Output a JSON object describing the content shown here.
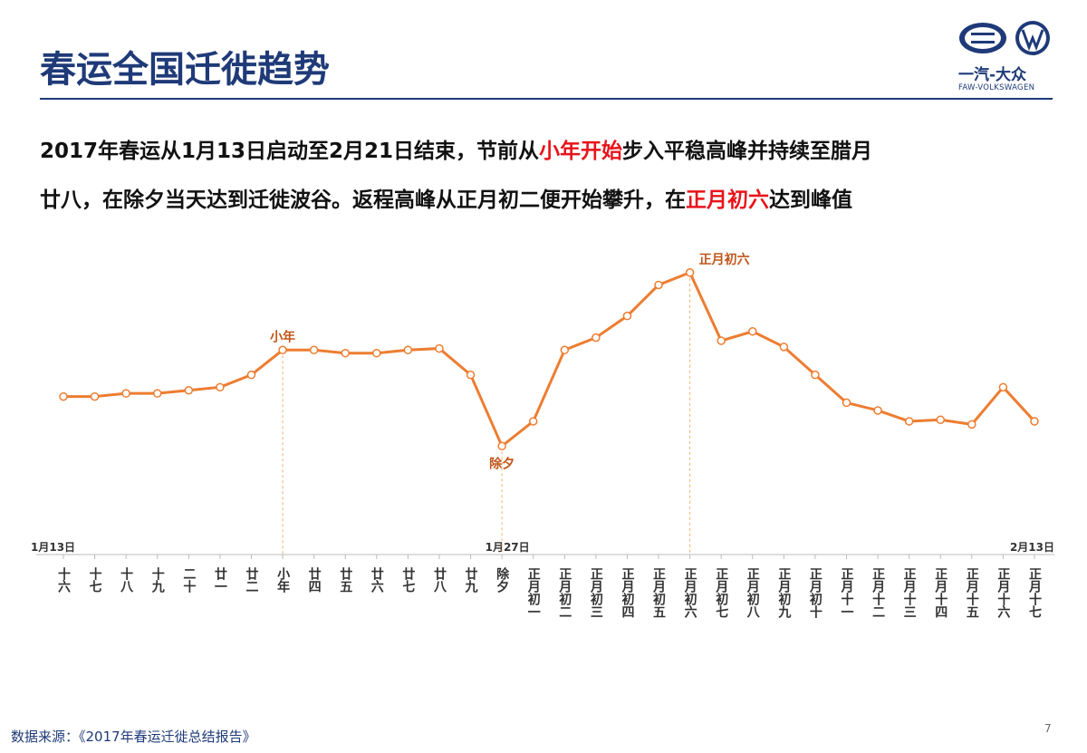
{
  "header": {
    "title": "春运全国迁徙趋势",
    "logo_cn": "一汽-大众",
    "logo_en": "FAW-VOLKSWAGEN"
  },
  "paragraph": [
    [
      {
        "text": "2017年春运从1月13日启动至2月21日结束，节前从",
        "highlight": false
      },
      {
        "text": "小年开始",
        "highlight": true
      },
      {
        "text": "步入平稳高峰并持续至腊月",
        "highlight": false
      }
    ],
    [
      {
        "text": "廿八，在除夕当天达到迁徙波谷。返程高峰从正月初二便开始攀升，在",
        "highlight": false
      },
      {
        "text": "正月初六",
        "highlight": true
      },
      {
        "text": "达到峰值",
        "highlight": false
      }
    ]
  ],
  "chart_data": {
    "type": "line",
    "categories": [
      "十六",
      "十七",
      "十八",
      "十九",
      "二十",
      "廿一",
      "廿二",
      "小年",
      "廿四",
      "廿五",
      "廿六",
      "廿七",
      "廿八",
      "廿九",
      "除夕",
      "正月初一",
      "正月初二",
      "正月初三",
      "正月初四",
      "正月初五",
      "正月初六",
      "正月初七",
      "正月初八",
      "正月初九",
      "正月初十",
      "正月十一",
      "正月十二",
      "正月十三",
      "正月十四",
      "正月十五",
      "正月十六",
      "正月十七"
    ],
    "values": [
      51,
      51,
      52,
      52,
      53,
      54,
      58,
      66,
      66,
      65,
      65,
      66,
      66.5,
      58,
      35,
      43,
      66,
      70,
      77,
      87,
      91,
      69,
      72,
      67,
      58,
      49,
      46.5,
      43,
      43.5,
      42,
      54,
      43
    ],
    "color": "#ed7d31",
    "ylim": [
      0,
      100
    ],
    "annotations": [
      {
        "text": "小年",
        "category": "小年"
      },
      {
        "text": "除夕",
        "category": "除夕"
      },
      {
        "text": "正月初六",
        "category": "正月初六"
      }
    ],
    "axis_dates": [
      {
        "text": "1月13日",
        "category": "十六"
      },
      {
        "text": "1月27日",
        "category": "除夕"
      },
      {
        "text": "2月13日",
        "category": "正月十七"
      }
    ]
  },
  "footer": {
    "source": "数据来源：《2017年春运迁徙总结报告》",
    "page": 7
  }
}
